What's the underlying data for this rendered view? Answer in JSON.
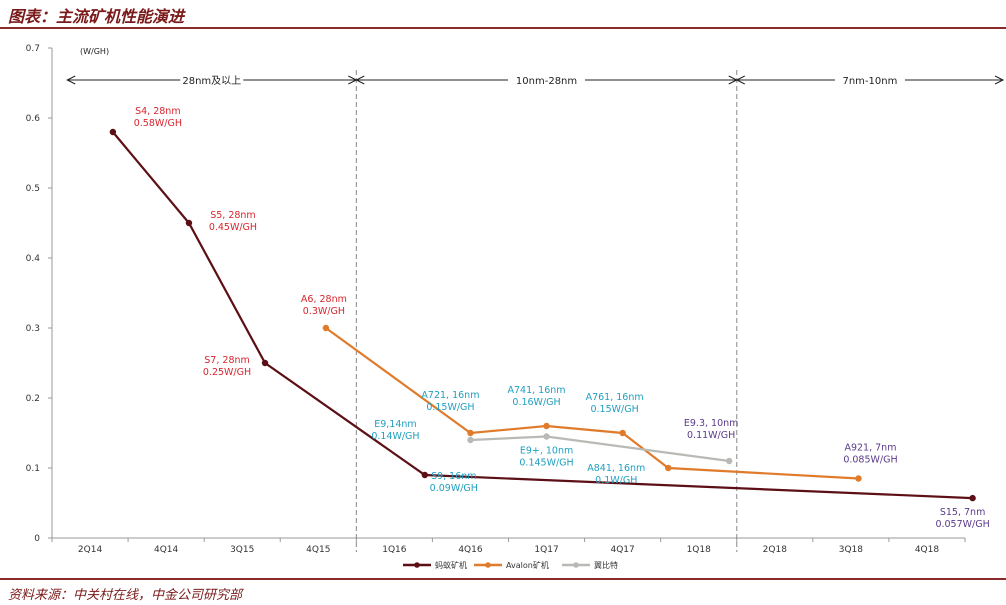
{
  "page": {
    "title": "图表：主流矿机性能演进",
    "source": "资料来源：中关村在线，中金公司研究部"
  },
  "chart_data": {
    "type": "line",
    "categories": [
      "2Q14",
      "4Q14",
      "3Q15",
      "4Q15",
      "1Q16",
      "4Q16",
      "1Q17",
      "4Q17",
      "1Q18",
      "2Q18",
      "3Q18",
      "4Q18"
    ],
    "ylabel": "(W/GH)",
    "ylim": [
      0,
      0.7
    ],
    "yticks": [
      "0",
      "0.1",
      "0.2",
      "0.3",
      "0.4",
      "0.5",
      "0.6",
      "0.7"
    ],
    "series": [
      {
        "name": "蚂蚁矿机",
        "color": "#5c0f14",
        "points": [
          {
            "x": 0.3,
            "y": 0.58,
            "label": [
              "S4, 28nm",
              "0.58W/GH"
            ],
            "label_color": "#d8262e"
          },
          {
            "x": 1.3,
            "y": 0.45,
            "label": [
              "S5, 28nm",
              "0.45W/GH"
            ],
            "label_color": "#d8262e"
          },
          {
            "x": 2.3,
            "y": 0.25,
            "label": [
              "S7, 28nm",
              "0.25W/GH"
            ],
            "label_color": "#d8262e"
          },
          {
            "x": 4.4,
            "y": 0.09,
            "label": [
              "S9, 16nm",
              "0.09W/GH"
            ],
            "label_color": "#1f9fbf"
          },
          {
            "x": 11.6,
            "y": 0.057,
            "label": [
              "S15, 7nm",
              "0.057W/GH"
            ],
            "label_color": "#5b3a8a"
          }
        ]
      },
      {
        "name": "Avalon矿机",
        "color": "#e07b2b",
        "points": [
          {
            "x": 3.1,
            "y": 0.3,
            "label": [
              "A6, 28nm",
              "0.3W/GH"
            ],
            "label_color": "#d8262e"
          },
          {
            "x": 5.0,
            "y": 0.15,
            "label": [
              "A721, 16nm",
              "0.15W/GH"
            ],
            "label_color": "#1f9fbf"
          },
          {
            "x": 6.0,
            "y": 0.16,
            "label": [
              "A741, 16nm",
              "0.16W/GH"
            ],
            "label_color": "#1f9fbf"
          },
          {
            "x": 7.0,
            "y": 0.15,
            "label": [
              "A761, 16nm",
              "0.15W/GH"
            ],
            "label_color": "#1f9fbf"
          },
          {
            "x": 7.6,
            "y": 0.1,
            "label": [
              "A841, 16nm",
              "0.1W/GH"
            ],
            "label_color": "#1f9fbf"
          },
          {
            "x": 10.1,
            "y": 0.085,
            "label": [
              "A921, 7nm",
              "0.085W/GH"
            ],
            "label_color": "#5b3a8a"
          }
        ]
      },
      {
        "name": "翼比特",
        "color": "#b8bab6",
        "points": [
          {
            "x": 5.0,
            "y": 0.14,
            "label": [
              "E9,14nm",
              "0.14W/GH"
            ],
            "label_color": "#1f9fbf"
          },
          {
            "x": 6.0,
            "y": 0.145,
            "label": [
              "E9+, 10nm",
              "0.145W/GH"
            ],
            "label_color": "#1f9fbf"
          },
          {
            "x": 8.4,
            "y": 0.11,
            "label": [
              "E9.3, 10nm",
              "0.11W/GH"
            ],
            "label_color": "#5b3a8a"
          }
        ]
      }
    ],
    "eras": [
      {
        "label": "28nm及以上",
        "x_start": -0.3,
        "x_end": 3.5
      },
      {
        "label": "10nm-28nm",
        "x_start": 3.5,
        "x_end": 8.5
      },
      {
        "label": "7nm-10nm",
        "x_start": 8.5,
        "x_end": 12.0
      }
    ],
    "dividers": [
      3.5,
      8.5
    ],
    "legend_position": "bottom"
  }
}
